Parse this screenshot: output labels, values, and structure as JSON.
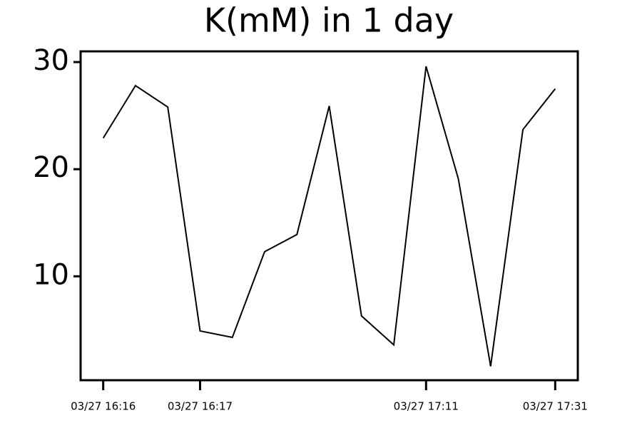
{
  "chart_data": {
    "type": "line",
    "title": "K(mM) in 1 day",
    "categories": [
      "03/27 16:16",
      null,
      null,
      "03/27 16:17",
      null,
      null,
      null,
      null,
      null,
      null,
      "03/27 17:11",
      null,
      null,
      null,
      "03/27 17:31"
    ],
    "series": [
      {
        "color": "#000000",
        "values": [
          22.9,
          27.8,
          25.8,
          4.9,
          4.3,
          12.3,
          13.9,
          25.9,
          6.3,
          3.6,
          29.6,
          19.1,
          1.6,
          23.7,
          27.5
        ]
      }
    ],
    "ylim": [
      0.3,
      31
    ],
    "yticks": [
      10,
      20,
      30
    ],
    "grid": false
  }
}
